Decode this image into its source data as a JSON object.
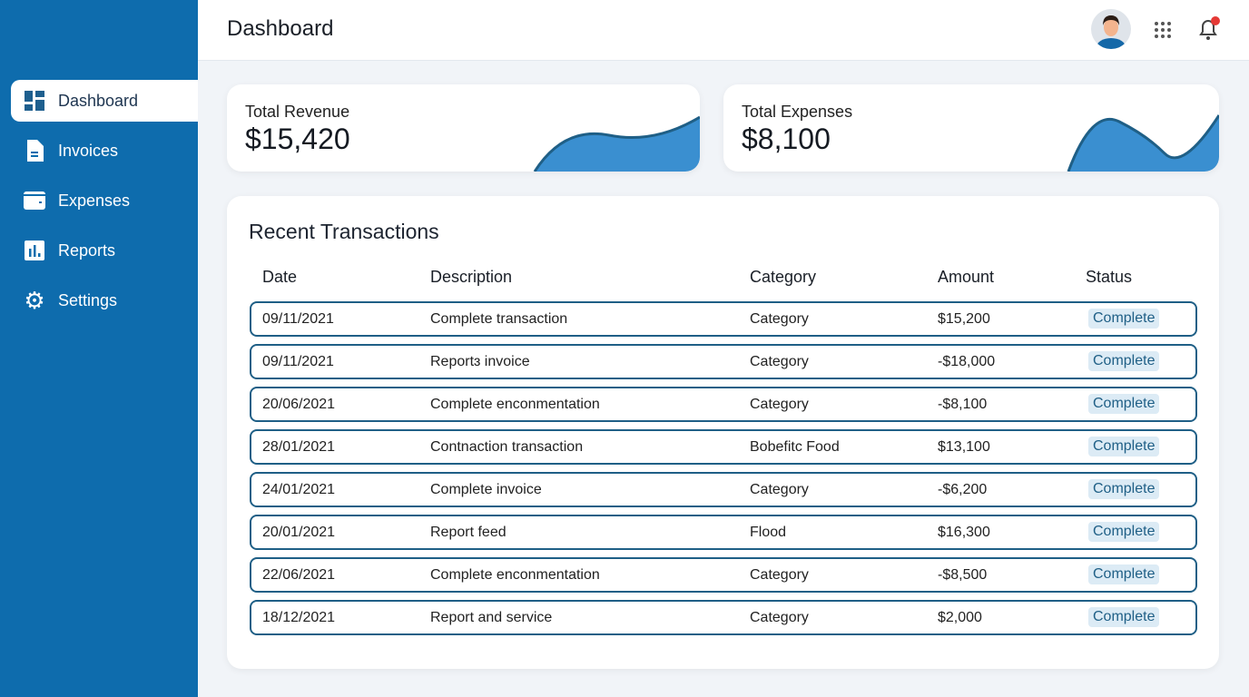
{
  "sidebar": {
    "items": [
      {
        "label": "Dashboard",
        "icon": "dashboard-icon",
        "active": true
      },
      {
        "label": "Invoices",
        "icon": "document-icon"
      },
      {
        "label": "Expenses",
        "icon": "wallet-icon"
      },
      {
        "label": "Reports",
        "icon": "bar-chart-icon"
      },
      {
        "label": "Settings",
        "icon": "gear-icon"
      }
    ]
  },
  "header": {
    "title": "Dashboard"
  },
  "cards": {
    "revenue": {
      "label": "Total Revenue",
      "value": "$15,420"
    },
    "expenses": {
      "label": "Total Expenses",
      "value": "$8,100"
    }
  },
  "transactions": {
    "title": "Recent Transactions",
    "columns": [
      "Date",
      "Description",
      "Category",
      "Amount",
      "Status"
    ],
    "rows": [
      [
        "09/11/2021",
        "Complete transaction",
        "Category",
        "$15,200",
        "Complete"
      ],
      [
        "09/11/2021",
        "Reportɜ invoice",
        "Category",
        "-$18,000",
        "Complete"
      ],
      [
        "20/06/2021",
        "Complete enconmentation",
        "Category",
        "-$8,100",
        "Complete"
      ],
      [
        "28/01/2021",
        "Contnaction transaction",
        "Bobefitc Food",
        "$13,100",
        "Complete"
      ],
      [
        "24/01/2021",
        "Complete invoice",
        "Category",
        "-$6,200",
        "Complete"
      ],
      [
        "20/01/2021",
        "Report feed",
        "Flood",
        "$16,300",
        "Complete"
      ],
      [
        "22/06/2021",
        "Complete enconmentation",
        "Category",
        "-$8,500",
        "Complete"
      ],
      [
        "18/12/2021",
        "Report and service",
        "Category",
        "$2,000",
        "Complete"
      ]
    ]
  },
  "colors": {
    "sidebar": "#0e6cad",
    "accent": "#3a8fd0",
    "row_border": "#1f5f86",
    "notification": "#e53935"
  }
}
